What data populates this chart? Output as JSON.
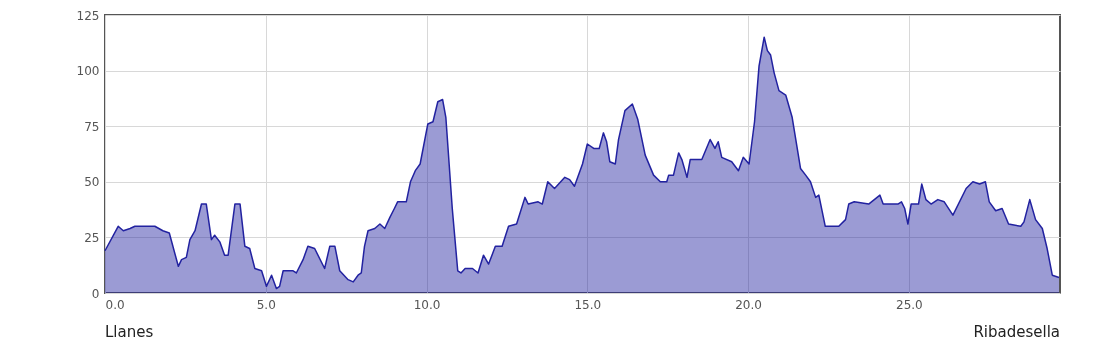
{
  "chart_data": {
    "type": "area",
    "x": [
      0,
      0.41,
      0.57,
      0.78,
      0.93,
      1.55,
      1.8,
      2.0,
      2.28,
      2.38,
      2.53,
      2.64,
      2.8,
      3.0,
      3.15,
      3.31,
      3.41,
      3.57,
      3.72,
      3.83,
      4.04,
      4.2,
      4.35,
      4.5,
      4.66,
      4.87,
      5.02,
      5.18,
      5.33,
      5.43,
      5.54,
      5.85,
      5.95,
      6.16,
      6.31,
      6.52,
      6.83,
      6.99,
      7.15,
      7.3,
      7.56,
      7.72,
      7.87,
      7.97,
      8.07,
      8.18,
      8.39,
      8.55,
      8.7,
      8.86,
      9.0,
      9.1,
      9.37,
      9.5,
      9.65,
      9.8,
      10.04,
      10.2,
      10.35,
      10.5,
      10.6,
      10.8,
      10.97,
      11.07,
      11.2,
      11.43,
      11.6,
      11.77,
      11.93,
      12.14,
      12.35,
      12.55,
      12.8,
      13.06,
      13.16,
      13.47,
      13.6,
      13.77,
      13.98,
      14.3,
      14.45,
      14.6,
      14.85,
      15.0,
      15.2,
      15.37,
      15.5,
      15.6,
      15.7,
      15.87,
      15.97,
      16.17,
      16.4,
      16.57,
      16.8,
      17.06,
      17.27,
      17.47,
      17.53,
      17.68,
      17.84,
      17.94,
      18.1,
      18.2,
      18.56,
      18.82,
      18.97,
      19.07,
      19.18,
      19.49,
      19.7,
      19.85,
      20.03,
      20.2,
      20.34,
      20.5,
      20.6,
      20.7,
      20.81,
      20.96,
      21.17,
      21.37,
      21.63,
      21.79,
      21.94,
      22.1,
      22.2,
      22.4,
      22.82,
      23.03,
      23.13,
      23.3,
      23.75,
      24.1,
      24.2,
      24.66,
      24.77,
      24.87,
      24.97,
      25.07,
      25.3,
      25.4,
      25.53,
      25.69,
      25.9,
      26.1,
      26.37,
      26.78,
      26.99,
      27.2,
      27.38,
      27.5,
      27.7,
      27.9,
      28.1,
      28.48,
      28.58,
      28.76,
      28.94,
      29.15,
      29.3,
      29.46,
      29.67
    ],
    "series": [
      {
        "color": "#2222a0",
        "values": [
          19,
          30,
          28,
          29,
          30,
          30,
          28,
          27,
          12,
          15,
          16,
          24,
          28,
          40,
          40,
          24,
          26,
          23,
          17,
          17,
          40,
          40,
          21,
          20,
          11,
          10,
          3,
          8,
          2,
          3,
          10,
          10,
          9,
          15,
          21,
          20,
          11,
          21,
          21,
          10,
          6,
          5,
          8,
          9,
          21,
          28,
          29,
          31,
          29,
          34,
          38,
          41,
          41,
          50,
          55,
          58,
          76,
          77,
          86,
          87,
          79,
          38,
          10,
          9,
          11,
          11,
          9,
          17,
          13,
          21,
          21,
          30,
          31,
          43,
          40,
          41,
          40,
          50,
          47,
          52,
          51,
          48,
          58,
          67,
          65,
          65,
          72,
          68,
          59,
          58,
          69,
          82,
          85,
          78,
          62,
          53,
          50,
          50,
          53,
          53,
          63,
          60,
          52,
          60,
          60,
          69,
          65,
          68,
          61,
          59,
          55,
          61,
          58,
          77,
          102,
          115,
          109,
          107,
          99,
          91,
          89,
          79,
          56,
          53,
          50,
          43,
          44,
          30,
          30,
          33,
          40,
          41,
          40,
          44,
          40,
          40,
          41,
          38,
          31,
          40,
          40,
          49,
          42,
          40,
          42,
          41,
          35,
          47,
          50,
          49,
          50,
          41,
          37,
          38,
          31,
          30,
          32,
          42,
          33,
          29,
          20,
          8,
          7
        ]
      }
    ],
    "xlim": [
      0,
      29.7
    ],
    "xticks": [
      {
        "value": 0,
        "label": "0.0"
      },
      {
        "value": 5,
        "label": "5.0"
      },
      {
        "value": 10,
        "label": "10.0"
      },
      {
        "value": 15,
        "label": "15.0"
      },
      {
        "value": 20,
        "label": "20.0"
      },
      {
        "value": 25,
        "label": "25.0"
      }
    ],
    "ylim": [
      0,
      125
    ],
    "yticks": [
      0,
      25,
      50,
      75,
      100,
      125
    ],
    "grid": true,
    "annotations": [
      "Llanes",
      "Ribadesella"
    ]
  }
}
